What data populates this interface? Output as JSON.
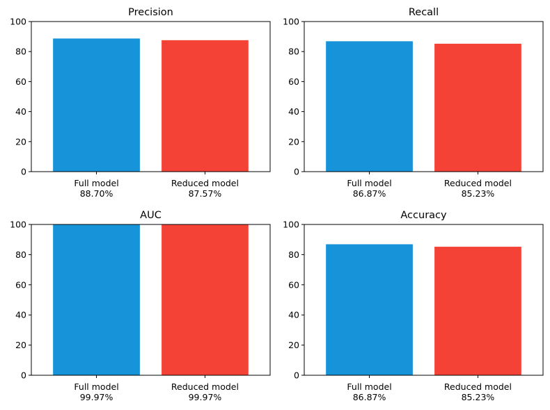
{
  "chart_data": [
    {
      "type": "bar",
      "title": "Precision",
      "categories": [
        "Full model",
        "Reduced model"
      ],
      "values": [
        88.7,
        87.57
      ],
      "value_labels": [
        "88.70%",
        "87.57%"
      ],
      "colors": [
        "#1793d9",
        "#f44336"
      ],
      "ylim": [
        0,
        100
      ],
      "yticks": [
        "0",
        "20",
        "40",
        "60",
        "80",
        "100"
      ],
      "grid": false
    },
    {
      "type": "bar",
      "title": "Recall",
      "categories": [
        "Full model",
        "Reduced model"
      ],
      "values": [
        86.87,
        85.23
      ],
      "value_labels": [
        "86.87%",
        "85.23%"
      ],
      "colors": [
        "#1793d9",
        "#f44336"
      ],
      "ylim": [
        0,
        100
      ],
      "yticks": [
        "0",
        "20",
        "40",
        "60",
        "80",
        "100"
      ],
      "grid": false
    },
    {
      "type": "bar",
      "title": "AUC",
      "categories": [
        "Full model",
        "Reduced model"
      ],
      "values": [
        99.97,
        99.97
      ],
      "value_labels": [
        "99.97%",
        "99.97%"
      ],
      "colors": [
        "#1793d9",
        "#f44336"
      ],
      "ylim": [
        0,
        100
      ],
      "yticks": [
        "0",
        "20",
        "40",
        "60",
        "80",
        "100"
      ],
      "grid": false
    },
    {
      "type": "bar",
      "title": "Accuracy",
      "categories": [
        "Full model",
        "Reduced model"
      ],
      "values": [
        86.87,
        85.23
      ],
      "value_labels": [
        "86.87%",
        "85.23%"
      ],
      "colors": [
        "#1793d9",
        "#f44336"
      ],
      "ylim": [
        0,
        100
      ],
      "yticks": [
        "0",
        "20",
        "40",
        "60",
        "80",
        "100"
      ],
      "grid": false
    }
  ]
}
